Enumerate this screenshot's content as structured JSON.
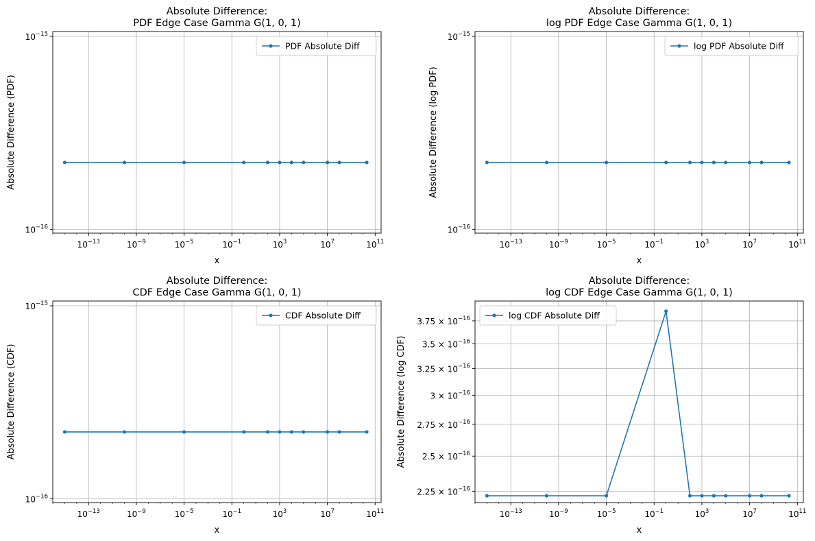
{
  "chart_data": [
    {
      "type": "line",
      "title_line1": "Absolute Difference:",
      "title_line2": "PDF Edge Case Gamma G(1, 0, 1)",
      "xlabel": "x",
      "ylabel": "Absolute Difference (PDF)",
      "xscale": "log",
      "yscale": "log",
      "xlim_exp": [
        -16,
        11.5
      ],
      "ylim_exp": [
        -16.02,
        -14.975
      ],
      "x_exp": [
        -15,
        -10,
        -5,
        0,
        2,
        3,
        4,
        5,
        7,
        8,
        10.3
      ],
      "series": [
        {
          "name": "PDF Absolute Diff",
          "color": "#1f77b4",
          "values": [
            2.22e-16,
            2.22e-16,
            2.22e-16,
            2.22e-16,
            2.22e-16,
            2.22e-16,
            2.22e-16,
            2.22e-16,
            2.22e-16,
            2.22e-16,
            2.22e-16
          ]
        }
      ],
      "xticks": [
        {
          "base": "10",
          "exp": "−13",
          "value_exp": -13
        },
        {
          "base": "10",
          "exp": "−9",
          "value_exp": -9
        },
        {
          "base": "10",
          "exp": "−5",
          "value_exp": -5
        },
        {
          "base": "10",
          "exp": "−1",
          "value_exp": -1
        },
        {
          "base": "10",
          "exp": "3",
          "value_exp": 3
        },
        {
          "base": "10",
          "exp": "7",
          "value_exp": 7
        },
        {
          "base": "10",
          "exp": "11",
          "value_exp": 11
        }
      ],
      "yticks": [
        {
          "base": "10",
          "exp": "−15",
          "value_exp": -15
        },
        {
          "base": "10",
          "exp": "−16",
          "value_exp": -16
        }
      ],
      "legend": "top-right",
      "grid": true
    },
    {
      "type": "line",
      "title_line1": "Absolute Difference:",
      "title_line2": "log PDF Edge Case Gamma G(1, 0, 1)",
      "xlabel": "x",
      "ylabel": "Absolute Difference (log PDF)",
      "xscale": "log",
      "yscale": "log",
      "xlim_exp": [
        -16,
        11.5
      ],
      "ylim_exp": [
        -16.02,
        -14.975
      ],
      "x_exp": [
        -15,
        -10,
        -5,
        0,
        2,
        3,
        4,
        5,
        7,
        8,
        10.3
      ],
      "series": [
        {
          "name": "log PDF Absolute Diff",
          "color": "#1f77b4",
          "values": [
            2.22e-16,
            2.22e-16,
            2.22e-16,
            2.22e-16,
            2.22e-16,
            2.22e-16,
            2.22e-16,
            2.22e-16,
            2.22e-16,
            2.22e-16,
            2.22e-16
          ]
        }
      ],
      "xticks": [
        {
          "base": "10",
          "exp": "−13",
          "value_exp": -13
        },
        {
          "base": "10",
          "exp": "−9",
          "value_exp": -9
        },
        {
          "base": "10",
          "exp": "−5",
          "value_exp": -5
        },
        {
          "base": "10",
          "exp": "−1",
          "value_exp": -1
        },
        {
          "base": "10",
          "exp": "3",
          "value_exp": 3
        },
        {
          "base": "10",
          "exp": "7",
          "value_exp": 7
        },
        {
          "base": "10",
          "exp": "11",
          "value_exp": 11
        }
      ],
      "yticks": [
        {
          "base": "10",
          "exp": "−15",
          "value_exp": -15
        },
        {
          "base": "10",
          "exp": "−16",
          "value_exp": -16
        }
      ],
      "legend": "top-right",
      "grid": true
    },
    {
      "type": "line",
      "title_line1": "Absolute Difference:",
      "title_line2": "CDF Edge Case Gamma G(1, 0, 1)",
      "xlabel": "x",
      "ylabel": "Absolute Difference (CDF)",
      "xscale": "log",
      "yscale": "log",
      "xlim_exp": [
        -16,
        11.5
      ],
      "ylim_exp": [
        -16.02,
        -14.975
      ],
      "x_exp": [
        -15,
        -10,
        -5,
        0,
        2,
        3,
        4,
        5,
        7,
        8,
        10.3
      ],
      "series": [
        {
          "name": "CDF Absolute Diff",
          "color": "#1f77b4",
          "values": [
            2.22e-16,
            2.22e-16,
            2.22e-16,
            2.22e-16,
            2.22e-16,
            2.22e-16,
            2.22e-16,
            2.22e-16,
            2.22e-16,
            2.22e-16,
            2.22e-16
          ]
        }
      ],
      "xticks": [
        {
          "base": "10",
          "exp": "−13",
          "value_exp": -13
        },
        {
          "base": "10",
          "exp": "−9",
          "value_exp": -9
        },
        {
          "base": "10",
          "exp": "−5",
          "value_exp": -5
        },
        {
          "base": "10",
          "exp": "−1",
          "value_exp": -1
        },
        {
          "base": "10",
          "exp": "3",
          "value_exp": 3
        },
        {
          "base": "10",
          "exp": "7",
          "value_exp": 7
        },
        {
          "base": "10",
          "exp": "11",
          "value_exp": 11
        }
      ],
      "yticks": [
        {
          "base": "10",
          "exp": "−15",
          "value_exp": -15
        },
        {
          "base": "10",
          "exp": "−16",
          "value_exp": -16
        }
      ],
      "legend": "top-right",
      "grid": true
    },
    {
      "type": "line",
      "title_line1": "Absolute Difference:",
      "title_line2": "log CDF Edge Case Gamma G(1, 0, 1)",
      "xlabel": "x",
      "ylabel": "Absolute Difference (log CDF)",
      "xscale": "log",
      "yscale": "log",
      "xlim_exp": [
        -16,
        11.5
      ],
      "ylim": [
        2.175e-16,
        3.98e-16
      ],
      "x_exp": [
        -15,
        -10,
        -5,
        0,
        2,
        3,
        4,
        5,
        7,
        8,
        10.3
      ],
      "series": [
        {
          "name": "log CDF Absolute Diff",
          "color": "#1f77b4",
          "values": [
            2.22e-16,
            2.22e-16,
            2.22e-16,
            3.86e-16,
            2.22e-16,
            2.22e-16,
            2.22e-16,
            2.22e-16,
            2.22e-16,
            2.22e-16,
            2.22e-16
          ]
        }
      ],
      "xticks": [
        {
          "base": "10",
          "exp": "−13",
          "value_exp": -13
        },
        {
          "base": "10",
          "exp": "−9",
          "value_exp": -9
        },
        {
          "base": "10",
          "exp": "−5",
          "value_exp": -5
        },
        {
          "base": "10",
          "exp": "−1",
          "value_exp": -1
        },
        {
          "base": "10",
          "exp": "3",
          "value_exp": 3
        },
        {
          "base": "10",
          "exp": "7",
          "value_exp": 7
        },
        {
          "base": "10",
          "exp": "11",
          "value_exp": 11
        }
      ],
      "yticks": [
        {
          "mant": "3.75",
          "base": "10",
          "exp": "−16",
          "value": 3.75e-16
        },
        {
          "mant": "3.5",
          "base": "10",
          "exp": "−16",
          "value": 3.5e-16
        },
        {
          "mant": "3.25",
          "base": "10",
          "exp": "−16",
          "value": 3.25e-16
        },
        {
          "mant": "3",
          "base": "10",
          "exp": "−16",
          "value": 3e-16
        },
        {
          "mant": "2.75",
          "base": "10",
          "exp": "−16",
          "value": 2.75e-16
        },
        {
          "mant": "2.5",
          "base": "10",
          "exp": "−16",
          "value": 2.5e-16
        },
        {
          "mant": "2.25",
          "base": "10",
          "exp": "−16",
          "value": 2.25e-16
        }
      ],
      "legend": "top-left",
      "grid": true
    }
  ]
}
